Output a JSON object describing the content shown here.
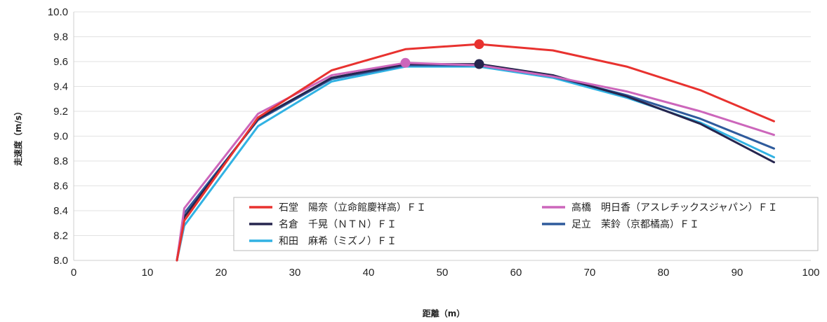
{
  "chart_data": {
    "type": "line",
    "xlabel": "距離（m）",
    "ylabel": "走速度（m/s）",
    "xlim": [
      0,
      100
    ],
    "ylim": [
      8.0,
      10.0
    ],
    "x_ticks": [
      "0",
      "10",
      "20",
      "30",
      "40",
      "50",
      "60",
      "70",
      "80",
      "90",
      "100"
    ],
    "y_ticks": [
      "8.0",
      "8.2",
      "8.4",
      "8.6",
      "8.8",
      "9.0",
      "9.2",
      "9.4",
      "9.6",
      "9.8",
      "10.0"
    ],
    "grid": "horizontal",
    "legend_placement": "bottom-right inside",
    "series": [
      {
        "name": "石堂　陽奈（立命館慶祥高）ＦＩ",
        "color": "#e8322f",
        "x": [
          14,
          15,
          25,
          35,
          45,
          55,
          65,
          75,
          85,
          95
        ],
        "y": [
          8.0,
          8.32,
          9.15,
          9.53,
          9.7,
          9.74,
          9.69,
          9.56,
          9.37,
          9.12
        ],
        "marker_at_x": 55
      },
      {
        "name": "高橋　明日香（アスレチックスジャパン）ＦＩ",
        "color": "#cc66bb",
        "x": [
          14,
          15,
          25,
          35,
          45,
          55,
          65,
          75,
          85,
          95
        ],
        "y": [
          8.0,
          8.42,
          9.18,
          9.49,
          9.59,
          9.57,
          9.48,
          9.36,
          9.2,
          9.01
        ],
        "marker_at_x": 45
      },
      {
        "name": "名倉　千晃（ＮＴＮ）ＦＩ",
        "color": "#26254e",
        "x": [
          14,
          15,
          25,
          35,
          45,
          55,
          65,
          75,
          85,
          95
        ],
        "y": [
          8.0,
          8.35,
          9.14,
          9.47,
          9.58,
          9.58,
          9.49,
          9.32,
          9.1,
          8.79
        ],
        "marker_at_x": 55
      },
      {
        "name": "足立　茉鈴（京都橘高）ＦＩ",
        "color": "#2f5b9c",
        "x": [
          14,
          15,
          25,
          35,
          45,
          55,
          65,
          75,
          85,
          95
        ],
        "y": [
          8.0,
          8.38,
          9.13,
          9.46,
          9.57,
          9.57,
          9.48,
          9.33,
          9.14,
          8.9
        ]
      },
      {
        "name": "和田　麻希（ミズノ）ＦＩ",
        "color": "#31b2e3",
        "x": [
          14,
          15,
          25,
          35,
          45,
          55,
          65,
          75,
          85,
          95
        ],
        "y": [
          8.0,
          8.28,
          9.08,
          9.44,
          9.56,
          9.56,
          9.47,
          9.31,
          9.11,
          8.83
        ]
      }
    ]
  }
}
